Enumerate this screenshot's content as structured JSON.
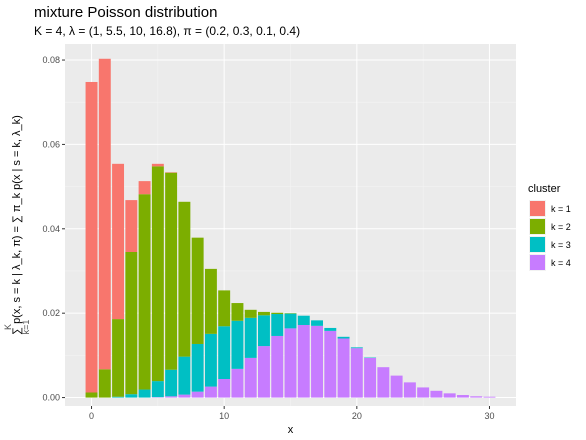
{
  "chart_data": {
    "type": "bar",
    "stacked": true,
    "title": "mixture Poisson distribution",
    "subtitle": "K = 4, λ = (1, 5.5, 10, 16.8), π = (0.2, 0.3, 0.1, 0.4)",
    "xlabel": "x",
    "ylabel": "∑ p(x, s = k | λ_k, π) = ∑ π_k p(x | s = k, λ_k)",
    "ylabel_sum_upper": "K",
    "ylabel_sum_lower": "k=1",
    "xlim": [
      -2,
      32
    ],
    "ylim": [
      -0.002,
      0.0838
    ],
    "x_ticks": [
      0,
      10,
      20,
      30
    ],
    "y_ticks": [
      0.0,
      0.02,
      0.04,
      0.06,
      0.08
    ],
    "y_tick_labels": [
      "0.00",
      "0.02",
      "0.04",
      "0.06",
      "0.08"
    ],
    "x": [
      0,
      1,
      2,
      3,
      4,
      5,
      6,
      7,
      8,
      9,
      10,
      11,
      12,
      13,
      14,
      15,
      16,
      17,
      18,
      19,
      20,
      21,
      22,
      23,
      24,
      25,
      26,
      27,
      28,
      29,
      30
    ],
    "legend_title": "cluster",
    "legend_position": "right",
    "grid": true,
    "series": [
      {
        "name": "k = 1",
        "color": "#F8766D",
        "values": [
          0.0736,
          0.0736,
          0.0368,
          0.0123,
          0.0031,
          0.0006,
          0.0001,
          0,
          0,
          0,
          0,
          0,
          0,
          0,
          0,
          0,
          0,
          0,
          0,
          0,
          0,
          0,
          0,
          0,
          0,
          0,
          0,
          0,
          0,
          0,
          0
        ]
      },
      {
        "name": "k = 2",
        "color": "#7CAE00",
        "values": [
          0.0012,
          0.0067,
          0.0184,
          0.0337,
          0.0463,
          0.0509,
          0.0467,
          0.0367,
          0.0252,
          0.0154,
          0.0085,
          0.0042,
          0.0019,
          0.0008,
          0.0003,
          0.0001,
          0,
          0,
          0,
          0,
          0,
          0,
          0,
          0,
          0,
          0,
          0,
          0,
          0,
          0,
          0
        ]
      },
      {
        "name": "k = 3",
        "color": "#00BFC4",
        "values": [
          0,
          0,
          0.0002,
          0.0008,
          0.0019,
          0.0038,
          0.0063,
          0.009,
          0.0113,
          0.0125,
          0.0125,
          0.0114,
          0.0095,
          0.0073,
          0.0052,
          0.0035,
          0.0022,
          0.0013,
          0.0007,
          0.0004,
          0.0002,
          0.0001,
          0,
          0,
          0,
          0,
          0,
          0,
          0,
          0,
          0
        ]
      },
      {
        "name": "k = 4",
        "color": "#C77CFF",
        "values": [
          0,
          0,
          0,
          0,
          0,
          0.0001,
          0.0003,
          0.0007,
          0.0014,
          0.0026,
          0.0044,
          0.0068,
          0.0094,
          0.0122,
          0.0146,
          0.0164,
          0.0172,
          0.017,
          0.0158,
          0.014,
          0.0117,
          0.0094,
          0.0072,
          0.0052,
          0.0036,
          0.0024,
          0.0016,
          0.001,
          0.0006,
          0.0003,
          0.0002
        ]
      }
    ]
  }
}
